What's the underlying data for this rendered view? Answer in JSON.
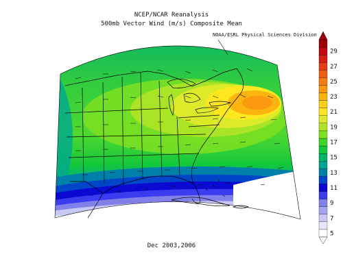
{
  "titles": {
    "line1": "NCEP/NCAR Reanalysis",
    "line2": "500mb Vector Wind (m/s) Composite Mean",
    "credit": "NOAA/ESRL Physical Sciences Division",
    "period": "Dec 2003,2006"
  },
  "colorbar": {
    "tick_labels": [
      "5",
      "7",
      "9",
      "11",
      "13",
      "15",
      "17",
      "19",
      "21",
      "23",
      "25",
      "27",
      "29"
    ],
    "bins": [
      {
        "value": 5,
        "color": "#fefefe"
      },
      {
        "value": 6,
        "color": "#e6e6fb"
      },
      {
        "value": 7,
        "color": "#c8c8f6"
      },
      {
        "value": 8,
        "color": "#a5a5ef"
      },
      {
        "value": 9,
        "color": "#8080e8"
      },
      {
        "value": 10,
        "color": "#3b3bf0"
      },
      {
        "value": 11,
        "color": "#0a0ad2"
      },
      {
        "value": 12,
        "color": "#0046c8"
      },
      {
        "value": 13,
        "color": "#0080a8"
      },
      {
        "value": 14,
        "color": "#00a38f"
      },
      {
        "value": 15,
        "color": "#00b468"
      },
      {
        "value": 16,
        "color": "#14c83c"
      },
      {
        "value": 17,
        "color": "#3ed628"
      },
      {
        "value": 18,
        "color": "#7ee022"
      },
      {
        "value": 19,
        "color": "#b0e428"
      },
      {
        "value": 20,
        "color": "#dcea2a"
      },
      {
        "value": 21,
        "color": "#fde820"
      },
      {
        "value": 22,
        "color": "#fdd018"
      },
      {
        "value": 23,
        "color": "#fcb410"
      },
      {
        "value": 24,
        "color": "#fa9810"
      },
      {
        "value": 25,
        "color": "#f57c12"
      },
      {
        "value": 26,
        "color": "#ef5c14"
      },
      {
        "value": 27,
        "color": "#e63c16"
      },
      {
        "value": 28,
        "color": "#d81c14"
      },
      {
        "value": 29,
        "color": "#c40810"
      },
      {
        "value": 30,
        "color": "#a00008"
      }
    ]
  }
}
